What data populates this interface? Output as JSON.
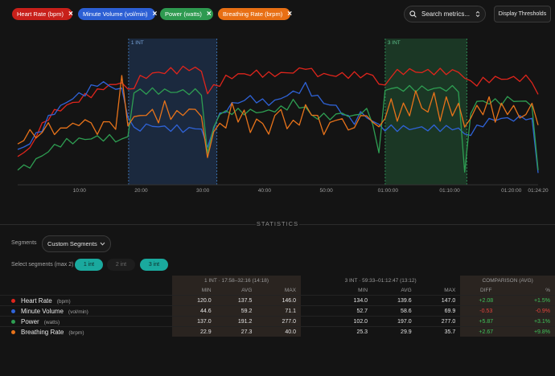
{
  "filters": [
    {
      "label": "Heart Rate",
      "unit": "(bpm)",
      "color": "#d9241c"
    },
    {
      "label": "Minute Volume",
      "unit": "(vol/min)",
      "color": "#2c5fd4"
    },
    {
      "label": "Power",
      "unit": "(watts)",
      "color": "#2e9a50"
    },
    {
      "label": "Breathing Rate",
      "unit": "(brpm)",
      "color": "#e86f14"
    }
  ],
  "search": {
    "placeholder": "Search metrics..."
  },
  "thresholds_button": "Display Thresholds",
  "chart_data": {
    "type": "line",
    "x_tick_labels": [
      "10:00",
      "20:00",
      "30:00",
      "40:00",
      "50:00",
      "01:00:00",
      "01:10:00",
      "01:20:00",
      "01:24:20"
    ],
    "x_range_min": [
      0,
      84.33
    ],
    "intervals": [
      {
        "label": "1 INT",
        "start_min": 17.97,
        "end_min": 32.27
      },
      {
        "label": "3 INT",
        "start_min": 59.55,
        "end_min": 72.78
      }
    ],
    "series": [
      {
        "name": "Heart Rate",
        "color": "#e0251c",
        "values": [
          65,
          68,
          72,
          84,
          92,
          100,
          104,
          107,
          110,
          112,
          115,
          118,
          120,
          122,
          126,
          128,
          128,
          132,
          122,
          128,
          134,
          136,
          138,
          139,
          140,
          141,
          141,
          142,
          143,
          143,
          140,
          122,
          126,
          130,
          134,
          136,
          137,
          138,
          138,
          139,
          138,
          137,
          138,
          138,
          139,
          140,
          141,
          145,
          140,
          138,
          137,
          137,
          137,
          137,
          137,
          137,
          137,
          137,
          137,
          130,
          126,
          138,
          139,
          140,
          141,
          140,
          140,
          140,
          140,
          140,
          140,
          140,
          140,
          135,
          130,
          130,
          132,
          133,
          134,
          134,
          134,
          134,
          134,
          134,
          133,
          120
        ]
      },
      {
        "name": "Minute Volume",
        "color": "#2f63d8",
        "values": [
          40,
          42,
          46,
          52,
          58,
          66,
          72,
          76,
          80,
          84,
          86,
          88,
          92,
          96,
          96,
          94,
          92,
          90,
          70,
          56,
          58,
          60,
          60,
          60,
          58,
          58,
          58,
          57,
          57,
          58,
          58,
          40,
          60,
          68,
          74,
          78,
          80,
          82,
          84,
          82,
          80,
          80,
          80,
          84,
          86,
          88,
          90,
          94,
          88,
          84,
          80,
          78,
          76,
          72,
          66,
          64,
          70,
          68,
          64,
          60,
          58,
          58,
          58,
          58,
          58,
          58,
          58,
          58,
          58,
          58,
          58,
          58,
          58,
          52,
          54,
          58,
          62,
          64,
          66,
          66,
          66,
          66,
          66,
          68,
          64,
          20
        ]
      },
      {
        "name": "Power",
        "color": "#2e9e52",
        "values": [
          30,
          34,
          40,
          50,
          60,
          70,
          78,
          84,
          88,
          90,
          92,
          94,
          96,
          96,
          96,
          96,
          94,
          90,
          100,
          190,
          192,
          192,
          192,
          192,
          192,
          191,
          191,
          191,
          191,
          190,
          190,
          60,
          120,
          145,
          148,
          150,
          150,
          150,
          150,
          150,
          150,
          150,
          155,
          155,
          160,
          170,
          160,
          160,
          140,
          140,
          140,
          140,
          140,
          150,
          140,
          140,
          150,
          150,
          130,
          60,
          197,
          197,
          197,
          197,
          197,
          197,
          197,
          197,
          197,
          197,
          197,
          197,
          197,
          20,
          150,
          170,
          170,
          170,
          170,
          170,
          175,
          175,
          170,
          170,
          165,
          30
        ]
      },
      {
        "name": "Breathing Rate",
        "color": "#e8731a",
        "values": [
          18,
          20,
          22,
          20,
          22,
          24,
          22,
          22,
          24,
          24,
          24,
          26,
          24,
          22,
          24,
          26,
          22,
          40,
          24,
          26,
          28,
          26,
          30,
          24,
          32,
          26,
          28,
          28,
          28,
          30,
          26,
          14,
          22,
          24,
          24,
          30,
          26,
          28,
          22,
          26,
          24,
          22,
          26,
          30,
          22,
          26,
          24,
          30,
          28,
          26,
          22,
          24,
          26,
          26,
          22,
          24,
          26,
          28,
          24,
          24,
          26,
          32,
          26,
          30,
          28,
          34,
          30,
          28,
          34,
          26,
          32,
          28,
          30,
          24,
          26,
          30,
          28,
          32,
          26,
          30,
          28,
          30,
          26,
          28,
          30,
          24
        ]
      }
    ]
  },
  "statistics": {
    "title": "STATISTICS",
    "segments_label": "Segments",
    "segments_value": "Custom Segments",
    "select_label": "Select segments (max 2)",
    "segment_buttons": [
      {
        "label": "1 int",
        "active": true
      },
      {
        "label": "2 int",
        "active": false
      },
      {
        "label": "3 int",
        "active": true
      }
    ],
    "group1": "1 INT · 17:58–32:16 (14:18)",
    "group2": "3 INT · 59:33–01:12:47 (13:12)",
    "group3": "COMPARISON (AVG)",
    "cols": {
      "min": "MIN",
      "avg": "AVG",
      "max": "MAX",
      "diff": "DIFF",
      "pct": "%"
    },
    "rows": [
      {
        "name": "Heart Rate",
        "unit": "(bpm)",
        "color": "#e0251c",
        "min1": "120.0",
        "avg1": "137.5",
        "max1": "146.0",
        "min2": "134.0",
        "avg2": "139.6",
        "max2": "147.0",
        "diff": "+2.08",
        "pct": "+1.5%",
        "sign": "pos"
      },
      {
        "name": "Minute Volume",
        "unit": "(vol/min)",
        "color": "#2f63d8",
        "min1": "44.6",
        "avg1": "59.2",
        "max1": "71.1",
        "min2": "52.7",
        "avg2": "58.6",
        "max2": "69.9",
        "diff": "-0.53",
        "pct": "-0.9%",
        "sign": "neg"
      },
      {
        "name": "Power",
        "unit": "(watts)",
        "color": "#2e9e52",
        "min1": "137.0",
        "avg1": "191.2",
        "max1": "277.0",
        "min2": "102.0",
        "avg2": "197.0",
        "max2": "277.0",
        "diff": "+5.87",
        "pct": "+3.1%",
        "sign": "pos"
      },
      {
        "name": "Breathing Rate",
        "unit": "(brpm)",
        "color": "#e8731a",
        "min1": "22.9",
        "avg1": "27.3",
        "max1": "40.0",
        "min2": "25.3",
        "avg2": "29.9",
        "max2": "35.7",
        "diff": "+2.67",
        "pct": "+9.8%",
        "sign": "pos"
      }
    ]
  }
}
